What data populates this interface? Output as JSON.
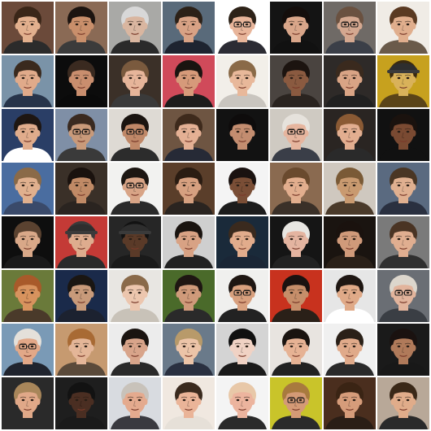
{
  "grid": {
    "rows": 8,
    "cols": 8,
    "tiles": [
      {
        "bg": "#6b4a3a",
        "skin": "#e2b08e",
        "hair": "#3a2618",
        "shirt": "#2b2b2b",
        "glasses": false,
        "hat": false
      },
      {
        "bg": "#8a6a55",
        "skin": "#c98f6b",
        "hair": "#1c1410",
        "shirt": "#3b3b3b",
        "glasses": false,
        "hat": false
      },
      {
        "bg": "#a9a9a6",
        "skin": "#d9b6a0",
        "hair": "#d8d8d8",
        "shirt": "#2a2a2a",
        "glasses": false,
        "hat": false
      },
      {
        "bg": "#596a7a",
        "skin": "#d8a285",
        "hair": "#2c2118",
        "shirt": "#1e2430",
        "glasses": false,
        "hat": false
      },
      {
        "bg": "#ffffff",
        "skin": "#e8b59a",
        "hair": "#2d2218",
        "shirt": "#2c2c34",
        "glasses": true,
        "hat": false
      },
      {
        "bg": "#141414",
        "skin": "#d9a68a",
        "hair": "#140e0c",
        "shirt": "#111111",
        "glasses": false,
        "hat": false
      },
      {
        "bg": "#6f6a66",
        "skin": "#d4a890",
        "hair": "#6a5140",
        "shirt": "#3b3f48",
        "glasses": true,
        "hat": false
      },
      {
        "bg": "#f0ece6",
        "skin": "#e0ae8d",
        "hair": "#5a3a22",
        "shirt": "#6a5a4a",
        "glasses": false,
        "hat": false
      },
      {
        "bg": "#7a93a8",
        "skin": "#e0aa8a",
        "hair": "#3a2a1e",
        "shirt": "#27344a",
        "glasses": false,
        "hat": false
      },
      {
        "bg": "#0c0c0c",
        "skin": "#c98e6e",
        "hair": "#3a2a20",
        "shirt": "#0a0a0a",
        "glasses": false,
        "hat": false
      },
      {
        "bg": "#3b3028",
        "skin": "#e6b59a",
        "hair": "#7a5a3e",
        "shirt": "#3a3a3a",
        "glasses": false,
        "hat": false
      },
      {
        "bg": "#d04a5a",
        "skin": "#d69a7a",
        "hair": "#1a1410",
        "shirt": "#1c1c1c",
        "glasses": false,
        "hat": false
      },
      {
        "bg": "#f2efe9",
        "skin": "#e8b89a",
        "hair": "#8a6a48",
        "shirt": "#c9c5bf",
        "glasses": false,
        "hat": false
      },
      {
        "bg": "#4a4440",
        "skin": "#8a5a40",
        "hair": "#1c1410",
        "shirt": "#2a2420",
        "glasses": false,
        "hat": false
      },
      {
        "bg": "#2e2a28",
        "skin": "#d9a485",
        "hair": "#3a2a1e",
        "shirt": "#202020",
        "glasses": false,
        "hat": false
      },
      {
        "bg": "#c7a11e",
        "skin": "#d9b25a",
        "hair": "#3a2a10",
        "shirt": "#5a4418",
        "glasses": false,
        "hat": true
      },
      {
        "bg": "#2a3e66",
        "skin": "#e0ac8c",
        "hair": "#1e1612",
        "shirt": "#ffffff",
        "glasses": false,
        "hat": false
      },
      {
        "bg": "#7f8fa6",
        "skin": "#c99a7a",
        "hair": "#3a2a20",
        "shirt": "#3a3a3a",
        "glasses": true,
        "hat": false
      },
      {
        "bg": "#dedad4",
        "skin": "#c08868",
        "hair": "#1a1410",
        "shirt": "#2c2c2c",
        "glasses": true,
        "hat": false
      },
      {
        "bg": "#6e5542",
        "skin": "#e4b094",
        "hair": "#3e2a1c",
        "shirt": "#262a36",
        "glasses": false,
        "hat": false
      },
      {
        "bg": "#121212",
        "skin": "#c38d70",
        "hair": "#0e0c0c",
        "shirt": "#121212",
        "glasses": false,
        "hat": false
      },
      {
        "bg": "#cfcac2",
        "skin": "#e6b59e",
        "hair": "#e6e2dc",
        "shirt": "#3a3e48",
        "glasses": true,
        "hat": false
      },
      {
        "bg": "#2a2522",
        "skin": "#e2ae90",
        "hair": "#8a5a34",
        "shirt": "#2a2a2a",
        "glasses": false,
        "hat": false
      },
      {
        "bg": "#111111",
        "skin": "#7a4a32",
        "hair": "#1a120e",
        "shirt": "#111111",
        "glasses": false,
        "hat": false
      },
      {
        "bg": "#4a6da0",
        "skin": "#e0b08e",
        "hair": "#8a6a48",
        "shirt": "#3a4a6a",
        "glasses": false,
        "hat": false
      },
      {
        "bg": "#3a3028",
        "skin": "#c08a66",
        "hair": "#1a120e",
        "shirt": "#2a2420",
        "glasses": false,
        "hat": false
      },
      {
        "bg": "#f2f2f0",
        "skin": "#d8a486",
        "hair": "#1c1612",
        "shirt": "#2a2a2a",
        "glasses": true,
        "hat": false
      },
      {
        "bg": "#5a3e2a",
        "skin": "#d6a080",
        "hair": "#2a1c12",
        "shirt": "#2a2420",
        "glasses": false,
        "hat": false
      },
      {
        "bg": "#f4f4f4",
        "skin": "#7a4e36",
        "hair": "#1a1210",
        "shirt": "#1c1c1c",
        "glasses": false,
        "hat": false
      },
      {
        "bg": "#8a6a50",
        "skin": "#e2ae8e",
        "hair": "#6a4a2e",
        "shirt": "#3a3028",
        "glasses": false,
        "hat": false
      },
      {
        "bg": "#cfc8bf",
        "skin": "#c99a70",
        "hair": "#7a5a36",
        "shirt": "#4a3a2a",
        "glasses": false,
        "hat": false
      },
      {
        "bg": "#5a6a80",
        "skin": "#e0b090",
        "hair": "#4a3624",
        "shirt": "#2a3040",
        "glasses": false,
        "hat": false
      },
      {
        "bg": "#0e0e0e",
        "skin": "#d9a888",
        "hair": "#5a4230",
        "shirt": "#1a1a1a",
        "glasses": false,
        "hat": false
      },
      {
        "bg": "#c43a36",
        "skin": "#deac8e",
        "hair": "#3a3a3a",
        "shirt": "#2a2a2a",
        "glasses": false,
        "hat": true
      },
      {
        "bg": "#262626",
        "skin": "#5a3a28",
        "hair": "#121212",
        "shirt": "#1a1a1a",
        "glasses": false,
        "hat": true
      },
      {
        "bg": "#cfcfcf",
        "skin": "#d8a284",
        "hair": "#1a1410",
        "shirt": "#222222",
        "glasses": false,
        "hat": false
      },
      {
        "bg": "#1a2a3a",
        "skin": "#e2ac8c",
        "hair": "#3a2a1e",
        "shirt": "#1a2636",
        "glasses": false,
        "hat": false
      },
      {
        "bg": "#151515",
        "skin": "#e4b4a0",
        "hair": "#e8e6e2",
        "shirt": "#222222",
        "glasses": false,
        "hat": false
      },
      {
        "bg": "#1a1410",
        "skin": "#d09a7a",
        "hair": "#1a120e",
        "shirt": "#2a2018",
        "glasses": false,
        "hat": false
      },
      {
        "bg": "#7a7a7a",
        "skin": "#e0ae90",
        "hair": "#4a3424",
        "shirt": "#303030",
        "glasses": false,
        "hat": false
      },
      {
        "bg": "#6a7a3a",
        "skin": "#d8935e",
        "hair": "#a85a2a",
        "shirt": "#4a3a2a",
        "glasses": false,
        "hat": false
      },
      {
        "bg": "#1a2a4a",
        "skin": "#c89a7a",
        "hair": "#1a1612",
        "shirt": "#1c2230",
        "glasses": false,
        "hat": false
      },
      {
        "bg": "#e8e6e2",
        "skin": "#ecc6ae",
        "hair": "#8a6a4a",
        "shirt": "#c8c2b8",
        "glasses": false,
        "hat": false
      },
      {
        "bg": "#4a6a2a",
        "skin": "#cf9a7a",
        "hair": "#1e1612",
        "shirt": "#2a2a2a",
        "glasses": false,
        "hat": false
      },
      {
        "bg": "#f0f0ee",
        "skin": "#d8a07e",
        "hair": "#1e1612",
        "shirt": "#222222",
        "glasses": true,
        "hat": false
      },
      {
        "bg": "#c8321e",
        "skin": "#c68e6a",
        "hair": "#1a1210",
        "shirt": "#2a2018",
        "glasses": false,
        "hat": false
      },
      {
        "bg": "#e6e6e6",
        "skin": "#e0aa88",
        "hair": "#1e1612",
        "shirt": "#ffffff",
        "glasses": false,
        "hat": false
      },
      {
        "bg": "#6a6e74",
        "skin": "#e2b49c",
        "hair": "#dcd6cc",
        "shirt": "#3a3e44",
        "glasses": true,
        "hat": false
      },
      {
        "bg": "#7a9ab6",
        "skin": "#e2a888",
        "hair": "#e4e0da",
        "shirt": "#20242e",
        "glasses": true,
        "hat": false
      },
      {
        "bg": "#c69a70",
        "skin": "#e4b698",
        "hair": "#a86a34",
        "shirt": "#5a4a3a",
        "glasses": false,
        "hat": false
      },
      {
        "bg": "#ececec",
        "skin": "#d8a48a",
        "hair": "#1a1410",
        "shirt": "#2a2a2a",
        "glasses": false,
        "hat": false
      },
      {
        "bg": "#6a7a8a",
        "skin": "#ecc4a8",
        "hair": "#b89a6a",
        "shirt": "#2a3040",
        "glasses": false,
        "hat": false
      },
      {
        "bg": "#d4d4d4",
        "skin": "#f0d2c4",
        "hair": "#101010",
        "shirt": "#1a1a1a",
        "glasses": false,
        "hat": false
      },
      {
        "bg": "#e8e4e0",
        "skin": "#e6b294",
        "hair": "#1a1410",
        "shirt": "#222222",
        "glasses": false,
        "hat": false
      },
      {
        "bg": "#f0f0f0",
        "skin": "#e0aa8a",
        "hair": "#2a2018",
        "shirt": "#2a2a2a",
        "glasses": false,
        "hat": false
      },
      {
        "bg": "#1a1a1a",
        "skin": "#b07a5a",
        "hair": "#1a1210",
        "shirt": "#181818",
        "glasses": false,
        "hat": false
      },
      {
        "bg": "#2a2a2a",
        "skin": "#e0a888",
        "hair": "#a8865a",
        "shirt": "#2a2a2a",
        "glasses": false,
        "hat": false
      },
      {
        "bg": "#1e1e1e",
        "skin": "#4a2e22",
        "hair": "#121212",
        "shirt": "#1a1a1a",
        "glasses": false,
        "hat": false
      },
      {
        "bg": "#d8dbe0",
        "skin": "#e4aa8e",
        "hair": "#c8c2ba",
        "shirt": "#3a3a40",
        "glasses": false,
        "hat": false
      },
      {
        "bg": "#f0e8e0",
        "skin": "#eab498",
        "hair": "#3a2a1e",
        "shirt": "#e6e0d8",
        "glasses": false,
        "hat": false
      },
      {
        "bg": "#f4f4f4",
        "skin": "#ecb49e",
        "hair": "#e8c8a8",
        "shirt": "#2a2a2a",
        "glasses": false,
        "hat": false
      },
      {
        "bg": "#c9c42a",
        "skin": "#d49a76",
        "hair": "#a87a3e",
        "shirt": "#2a2a2a",
        "glasses": true,
        "hat": false
      },
      {
        "bg": "#4a2e1e",
        "skin": "#d69c7a",
        "hair": "#3a2414",
        "shirt": "#2a1e16",
        "glasses": false,
        "hat": false
      },
      {
        "bg": "#b8a898",
        "skin": "#e0ac8a",
        "hair": "#3a2818",
        "shirt": "#2a2a2a",
        "glasses": false,
        "hat": false
      }
    ]
  }
}
